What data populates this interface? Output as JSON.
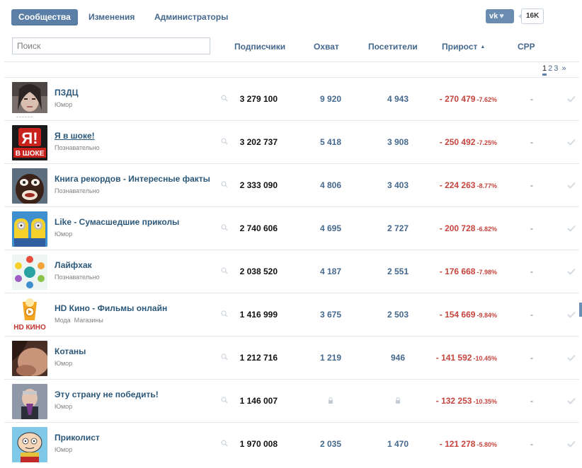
{
  "nav": {
    "tabs": [
      {
        "label": "Сообщества",
        "active": true
      },
      {
        "label": "Изменения",
        "active": false
      },
      {
        "label": "Администраторы",
        "active": false
      }
    ],
    "vk_label": "vk",
    "vk_count": "16K"
  },
  "header": {
    "search_placeholder": "Поиск",
    "columns": {
      "subscribers": "Подписчики",
      "reach": "Охват",
      "visitors": "Посетители",
      "growth": "Прирост",
      "cpp": "CPP"
    }
  },
  "pagination": {
    "pages": [
      "1",
      "2",
      "3"
    ],
    "current": "1",
    "next": "»"
  },
  "communities": [
    {
      "name": "ПЗДЦ",
      "cats": [
        "Юмор"
      ],
      "subscribers": "3 279 100",
      "reach": "9 920",
      "visitors": "4 943",
      "growth": "- 270 479",
      "growth_pct": "-7.62%",
      "cpp": "-",
      "avatar": "girl",
      "underline": false
    },
    {
      "name": "Я в шоке!",
      "cats": [
        "Познавательно"
      ],
      "subscribers": "3 202 737",
      "reach": "5 418",
      "visitors": "3 908",
      "growth": "- 250 492",
      "growth_pct": "-7.25%",
      "cpp": "-",
      "avatar": "shock",
      "underline": true
    },
    {
      "name": "Книга рекордов - Интересные факты",
      "cats": [
        "Познавательно"
      ],
      "subscribers": "2 333 090",
      "reach": "4 806",
      "visitors": "3 403",
      "growth": "- 224 263",
      "growth_pct": "-8.77%",
      "cpp": "-",
      "avatar": "face",
      "underline": false
    },
    {
      "name": "Like - Сумасшедшие приколы",
      "cats": [
        "Юмор"
      ],
      "subscribers": "2 740 606",
      "reach": "4 695",
      "visitors": "2 727",
      "growth": "- 200 728",
      "growth_pct": "-6.82%",
      "cpp": "-",
      "avatar": "minions",
      "underline": false
    },
    {
      "name": "Лайфхак",
      "cats": [
        "Познавательно"
      ],
      "subscribers": "2 038 520",
      "reach": "4 187",
      "visitors": "2 551",
      "growth": "- 176 668",
      "growth_pct": "-7.98%",
      "cpp": "-",
      "avatar": "lifehack",
      "underline": false
    },
    {
      "name": "HD Кино - Фильмы онлайн",
      "cats": [
        "Мода",
        "Магазины"
      ],
      "subscribers": "1 416 999",
      "reach": "3 675",
      "visitors": "2 503",
      "growth": "- 154 669",
      "growth_pct": "-9.84%",
      "cpp": "-",
      "avatar": "hdkino",
      "underline": false
    },
    {
      "name": "Котаны",
      "cats": [
        "Юмор"
      ],
      "subscribers": "1 212 716",
      "reach": "1 219",
      "visitors": "946",
      "growth": "- 141 592",
      "growth_pct": "-10.45%",
      "cpp": "-",
      "avatar": "kotany",
      "underline": false
    },
    {
      "name": "Эту страну не победить!",
      "cats": [
        "Юмор"
      ],
      "subscribers": "1 146 007",
      "reach": "",
      "visitors": "",
      "growth": "- 132 253",
      "growth_pct": "-10.35%",
      "cpp": "-",
      "avatar": "country",
      "underline": false,
      "locked": true
    },
    {
      "name": "Приколист",
      "cats": [
        "Юмор"
      ],
      "subscribers": "1 970 008",
      "reach": "2 035",
      "visitors": "1 470",
      "growth": "- 121 278",
      "growth_pct": "-5.80%",
      "cpp": "-",
      "avatar": "stewie",
      "underline": false
    }
  ],
  "avatar_text": {
    "shock_top": "Я!",
    "shock_bottom": "В ШОКЕ",
    "hdkino": "HD КИНО"
  },
  "colors": {
    "accent": "#5b7fa6",
    "link": "#2b587a",
    "negative": "#c6443e"
  }
}
